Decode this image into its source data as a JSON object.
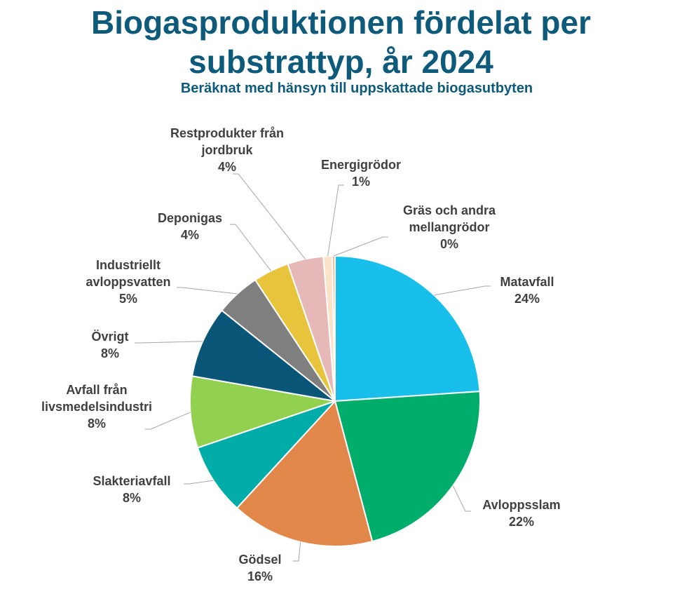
{
  "chart_data": {
    "type": "pie",
    "title_lines": [
      "Biogasproduktionen fördelat per",
      "substrattyp, år 2024"
    ],
    "subtitle": "Beräknat med hänsyn till uppskattade biogasutbyten",
    "slices": [
      {
        "name": "Matavfall",
        "label_lines": [
          "Matavfall"
        ],
        "value": 24,
        "pct_label": "24%",
        "color": "#17bfea"
      },
      {
        "name": "Avloppsslam",
        "label_lines": [
          "Avloppsslam"
        ],
        "value": 22,
        "pct_label": "22%",
        "color": "#00ad6a"
      },
      {
        "name": "Gödsel",
        "label_lines": [
          "Gödsel"
        ],
        "value": 16,
        "pct_label": "16%",
        "color": "#e2874a"
      },
      {
        "name": "Slakteriavfall",
        "label_lines": [
          "Slakteriavfall"
        ],
        "value": 8,
        "pct_label": "8%",
        "color": "#00aca7"
      },
      {
        "name": "Avfall från livsmedelsindustri",
        "label_lines": [
          "Avfall från",
          "livsmedelsindustri"
        ],
        "value": 8,
        "pct_label": "8%",
        "color": "#92d050"
      },
      {
        "name": "Övrigt",
        "label_lines": [
          "Övrigt"
        ],
        "value": 8,
        "pct_label": "8%",
        "color": "#0a5678"
      },
      {
        "name": "Industriellt avloppsvatten",
        "label_lines": [
          "Industriellt",
          "avloppsvatten"
        ],
        "value": 5,
        "pct_label": "5%",
        "color": "#7f7f7f"
      },
      {
        "name": "Deponigas",
        "label_lines": [
          "Deponigas"
        ],
        "value": 4,
        "pct_label": "4%",
        "color": "#e8c43c"
      },
      {
        "name": "Restprodukter från jordbruk",
        "label_lines": [
          "Restprodukter från",
          "jordbruk"
        ],
        "value": 4,
        "pct_label": "4%",
        "color": "#e6b8b7"
      },
      {
        "name": "Energigrödor",
        "label_lines": [
          "Energigrödor"
        ],
        "value": 1,
        "pct_label": "1%",
        "color": "#fbe3c9"
      },
      {
        "name": "Gräs och andra mellangrödor",
        "label_lines": [
          "Gräs och andra",
          "mellangrödor"
        ],
        "value": 0.3,
        "pct_label": "0%",
        "color": "#f4b183"
      }
    ],
    "legend": "none"
  }
}
